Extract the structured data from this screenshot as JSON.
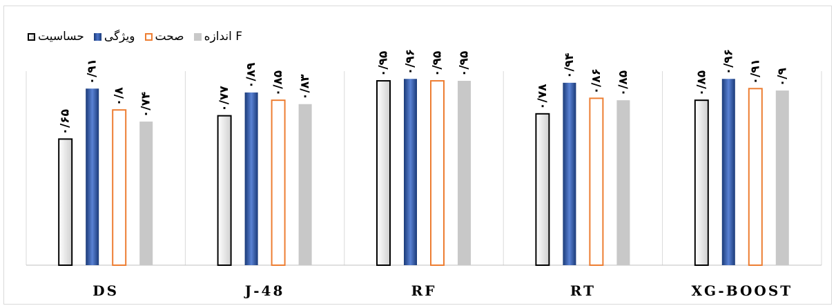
{
  "chart_data": {
    "type": "bar",
    "categories": [
      "DS",
      "J-48",
      "RF",
      "RT",
      "XG-BOOST"
    ],
    "series": [
      {
        "name": "حساسیت",
        "color": "#000000",
        "values": [
          0.65,
          0.77,
          0.95,
          0.78,
          0.85
        ],
        "labels": [
          "۰/۶۵",
          "۰/۷۷",
          "۰/۹۵",
          "۰/۷۸",
          "۰/۸۵"
        ]
      },
      {
        "name": "ویژگی",
        "color": "#2f55a4",
        "values": [
          0.91,
          0.89,
          0.96,
          0.94,
          0.96
        ],
        "labels": [
          "۰/۹۱",
          "۰/۸۹",
          "۰/۹۶",
          "۰/۹۴",
          "۰/۹۶"
        ]
      },
      {
        "name": "صحت",
        "color": "#ed7d31",
        "values": [
          0.8,
          0.85,
          0.95,
          0.86,
          0.91
        ],
        "labels": [
          "۰/۸",
          "۰/۸۵",
          "۰/۹۵",
          "۰/۸۶",
          "۰/۹۱"
        ]
      },
      {
        "name": "اندازه F",
        "color": "#c8c8c8",
        "values": [
          0.74,
          0.83,
          0.95,
          0.85,
          0.9
        ],
        "labels": [
          "۰/۷۴",
          "۰/۸۳",
          "۰/۹۵",
          "۰/۸۵",
          "۰/۹"
        ]
      }
    ],
    "ylim": [
      0,
      1
    ],
    "grid": "vertical-separators",
    "legend": "top-left"
  }
}
